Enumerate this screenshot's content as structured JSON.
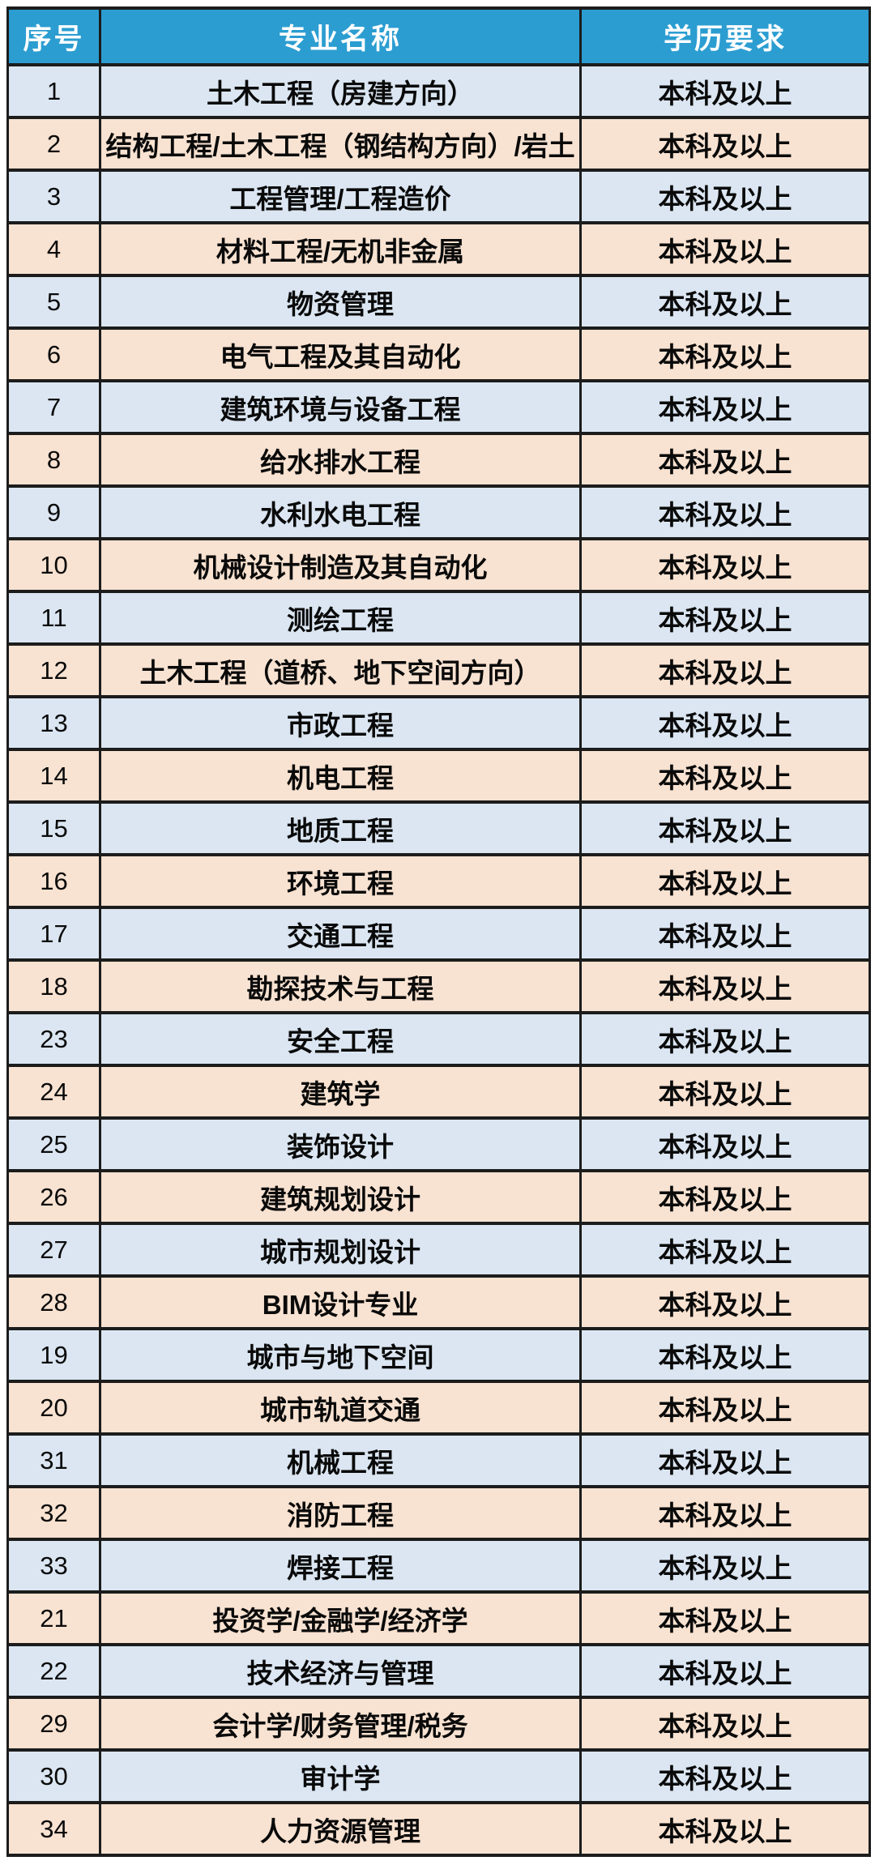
{
  "table": {
    "headers": [
      {
        "label": "序号"
      },
      {
        "label": "专业名称"
      },
      {
        "label": "学历要求"
      }
    ],
    "rows": [
      {
        "no": "1",
        "major": "土木工程（房建方向）",
        "requirement": "本科及以上"
      },
      {
        "no": "2",
        "major": "结构工程/土木工程（钢结构方向）/岩土",
        "requirement": "本科及以上"
      },
      {
        "no": "3",
        "major": "工程管理/工程造价",
        "requirement": "本科及以上"
      },
      {
        "no": "4",
        "major": "材料工程/无机非金属",
        "requirement": "本科及以上"
      },
      {
        "no": "5",
        "major": "物资管理",
        "requirement": "本科及以上"
      },
      {
        "no": "6",
        "major": "电气工程及其自动化",
        "requirement": "本科及以上"
      },
      {
        "no": "7",
        "major": "建筑环境与设备工程",
        "requirement": "本科及以上"
      },
      {
        "no": "8",
        "major": "给水排水工程",
        "requirement": "本科及以上"
      },
      {
        "no": "9",
        "major": "水利水电工程",
        "requirement": "本科及以上"
      },
      {
        "no": "10",
        "major": "机械设计制造及其自动化",
        "requirement": "本科及以上"
      },
      {
        "no": "11",
        "major": "测绘工程",
        "requirement": "本科及以上"
      },
      {
        "no": "12",
        "major": "土木工程（道桥、地下空间方向）",
        "requirement": "本科及以上"
      },
      {
        "no": "13",
        "major": "市政工程",
        "requirement": "本科及以上"
      },
      {
        "no": "14",
        "major": "机电工程",
        "requirement": "本科及以上"
      },
      {
        "no": "15",
        "major": "地质工程",
        "requirement": "本科及以上"
      },
      {
        "no": "16",
        "major": "环境工程",
        "requirement": "本科及以上"
      },
      {
        "no": "17",
        "major": "交通工程",
        "requirement": "本科及以上"
      },
      {
        "no": "18",
        "major": "勘探技术与工程",
        "requirement": "本科及以上"
      },
      {
        "no": "23",
        "major": "安全工程",
        "requirement": "本科及以上"
      },
      {
        "no": "24",
        "major": "建筑学",
        "requirement": "本科及以上"
      },
      {
        "no": "25",
        "major": "装饰设计",
        "requirement": "本科及以上"
      },
      {
        "no": "26",
        "major": "建筑规划设计",
        "requirement": "本科及以上"
      },
      {
        "no": "27",
        "major": "城市规划设计",
        "requirement": "本科及以上"
      },
      {
        "no": "28",
        "major": "BIM设计专业",
        "requirement": "本科及以上"
      },
      {
        "no": "19",
        "major": "城市与地下空间",
        "requirement": "本科及以上"
      },
      {
        "no": "20",
        "major": "城市轨道交通",
        "requirement": "本科及以上"
      },
      {
        "no": "31",
        "major": "机械工程",
        "requirement": "本科及以上"
      },
      {
        "no": "32",
        "major": "消防工程",
        "requirement": "本科及以上"
      },
      {
        "no": "33",
        "major": "焊接工程",
        "requirement": "本科及以上"
      },
      {
        "no": "21",
        "major": "投资学/金融学/经济学",
        "requirement": "本科及以上"
      },
      {
        "no": "22",
        "major": "技术经济与管理",
        "requirement": "本科及以上"
      },
      {
        "no": "29",
        "major": "会计学/财务管理/税务",
        "requirement": "本科及以上"
      },
      {
        "no": "30",
        "major": "审计学",
        "requirement": "本科及以上"
      },
      {
        "no": "34",
        "major": "人力资源管理",
        "requirement": "本科及以上"
      }
    ],
    "colors": {
      "header_bg": "#2b9dd1",
      "header_text": "#ffffff",
      "row_blue": "#dbe6f2",
      "row_peach": "#f8e2d1",
      "border": "#1c1c1c",
      "text": "#0a0a0a"
    }
  }
}
